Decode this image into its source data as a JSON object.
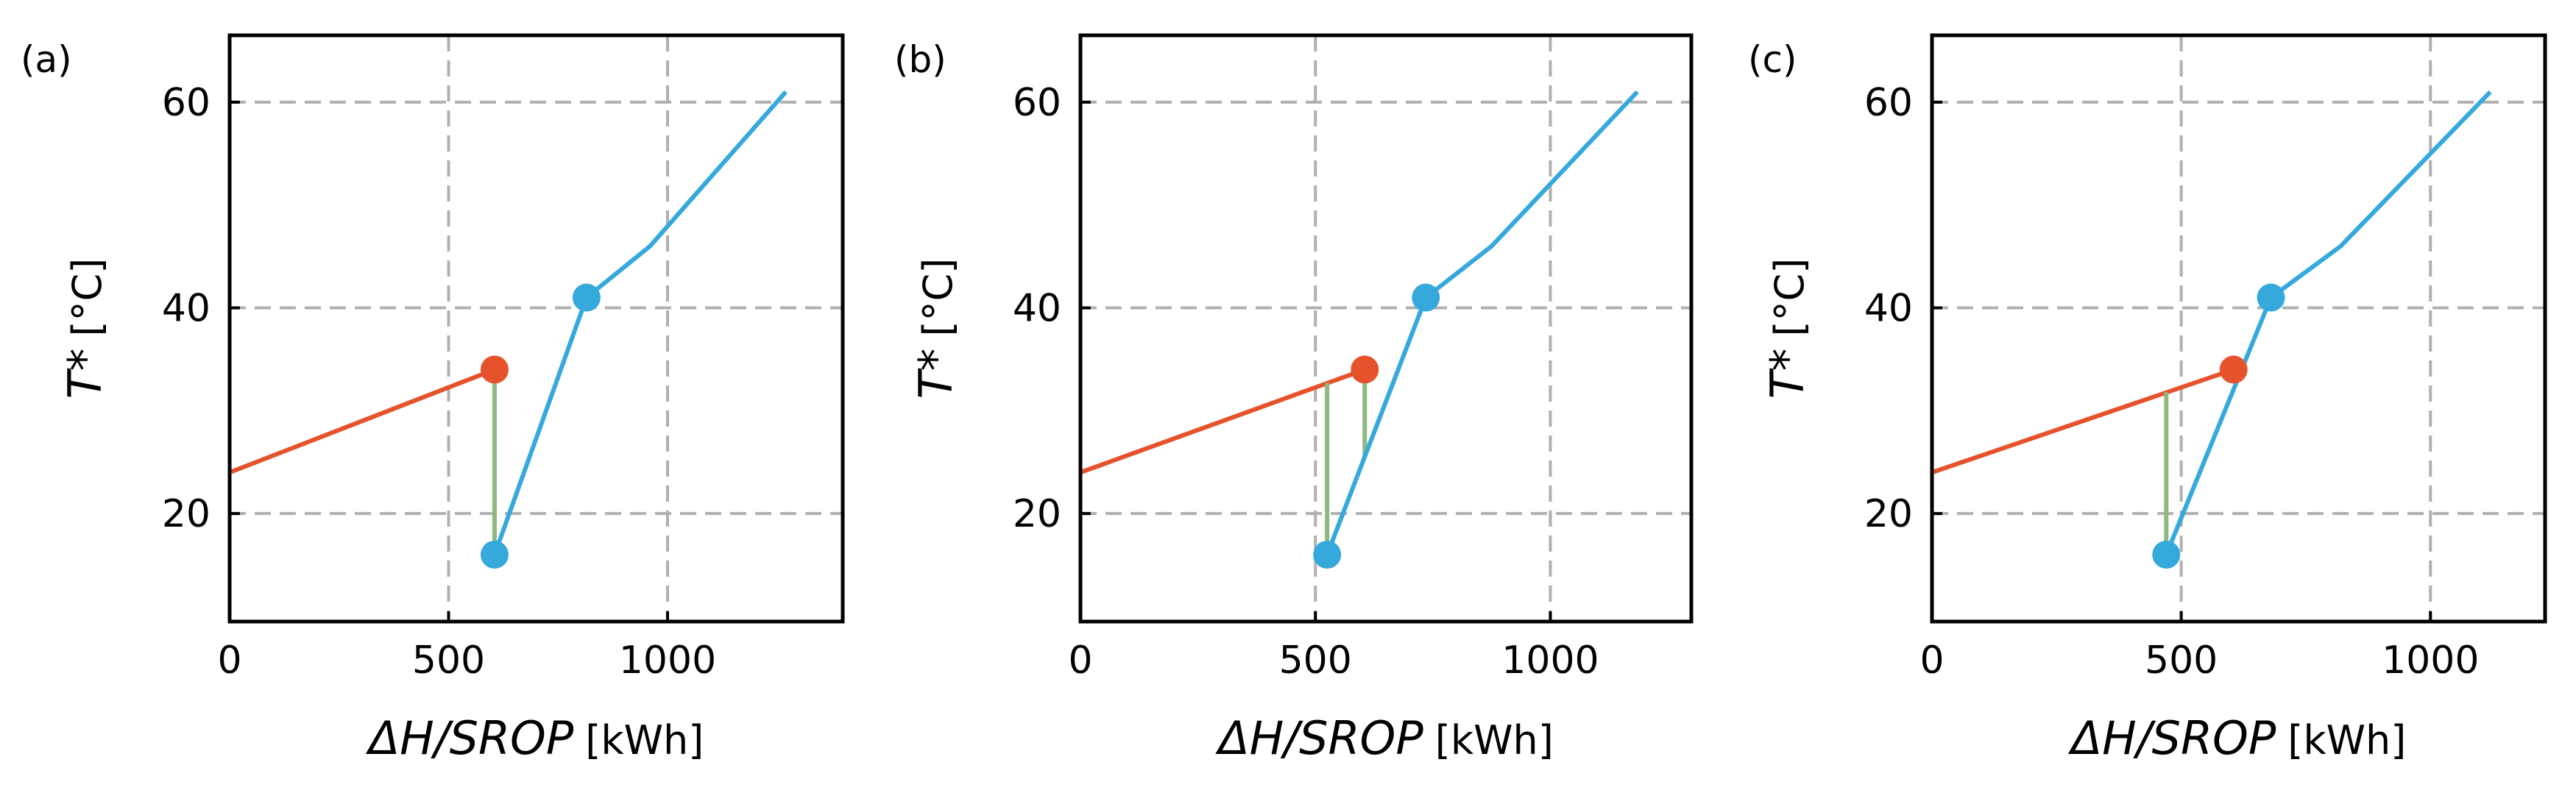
{
  "chart_data": [
    {
      "panel": "(a)",
      "type": "line",
      "xlabel_main": "ΔH/SROP",
      "xlabel_unit": "[kWh]",
      "ylabel_main": "T*",
      "ylabel_unit": "[°C]",
      "xlim": [
        0,
        1400
      ],
      "ylim": [
        9.5,
        66.5
      ],
      "xticks": [
        0,
        500,
        1000
      ],
      "yticks": [
        20,
        40,
        60
      ],
      "x_gridlines": [
        500,
        1000
      ],
      "y_gridlines": [
        20,
        40,
        60
      ],
      "hot_color": "#e6522c",
      "cold_color": "#35a9dc",
      "gap_color": "#8db87f",
      "hot_curve": {
        "x": [
          0,
          605
        ],
        "y": [
          24,
          34
        ]
      },
      "hot_marker": {
        "x": 605,
        "y": 34
      },
      "cold_curve": {
        "x": [
          605,
          815,
          960,
          1270
        ],
        "y": [
          16,
          41,
          46,
          61
        ]
      },
      "cold_markers": [
        {
          "x": 605,
          "y": 16
        },
        {
          "x": 815,
          "y": 41
        }
      ],
      "gap_lines": [
        {
          "x": 605,
          "y1": 16,
          "y2": 34
        }
      ]
    },
    {
      "panel": "(b)",
      "type": "line",
      "xlabel_main": "ΔH/SROP",
      "xlabel_unit": "[kWh]",
      "ylabel_main": "T*",
      "ylabel_unit": "[°C]",
      "xlim": [
        0,
        1300
      ],
      "ylim": [
        9.5,
        66.5
      ],
      "xticks": [
        0,
        500,
        1000
      ],
      "yticks": [
        20,
        40,
        60
      ],
      "x_gridlines": [
        500,
        1000
      ],
      "y_gridlines": [
        20,
        40,
        60
      ],
      "hot_color": "#e6522c",
      "cold_color": "#35a9dc",
      "gap_color": "#8db87f",
      "hot_curve": {
        "x": [
          0,
          605
        ],
        "y": [
          24,
          34
        ]
      },
      "hot_marker": {
        "x": 605,
        "y": 34
      },
      "cold_curve": {
        "x": [
          525,
          735,
          875,
          1185
        ],
        "y": [
          16,
          41,
          46,
          61
        ]
      },
      "cold_markers": [
        {
          "x": 525,
          "y": 16
        },
        {
          "x": 735,
          "y": 41
        }
      ],
      "gap_lines": [
        {
          "x": 525,
          "y1": 16,
          "y2": 32.7
        },
        {
          "x": 605,
          "y1": 25.5,
          "y2": 34
        }
      ]
    },
    {
      "panel": "(c)",
      "type": "line",
      "xlabel_main": "ΔH/SROP",
      "xlabel_unit": "[kWh]",
      "ylabel_main": "T*",
      "ylabel_unit": "[°C]",
      "xlim": [
        0,
        1230
      ],
      "ylim": [
        9.5,
        66.5
      ],
      "xticks": [
        0,
        500,
        1000
      ],
      "yticks": [
        20,
        40,
        60
      ],
      "x_gridlines": [
        500,
        1000
      ],
      "y_gridlines": [
        20,
        40,
        60
      ],
      "hot_color": "#e6522c",
      "cold_color": "#35a9dc",
      "gap_color": "#8db87f",
      "hot_curve": {
        "x": [
          0,
          605
        ],
        "y": [
          24,
          34
        ]
      },
      "hot_marker": {
        "x": 605,
        "y": 34
      },
      "cold_curve": {
        "x": [
          470,
          680,
          820,
          1120
        ],
        "y": [
          16,
          41,
          46,
          61
        ]
      },
      "cold_markers": [
        {
          "x": 470,
          "y": 16
        },
        {
          "x": 680,
          "y": 41
        }
      ],
      "gap_lines": [
        {
          "x": 470,
          "y1": 16,
          "y2": 31.8
        }
      ]
    }
  ]
}
